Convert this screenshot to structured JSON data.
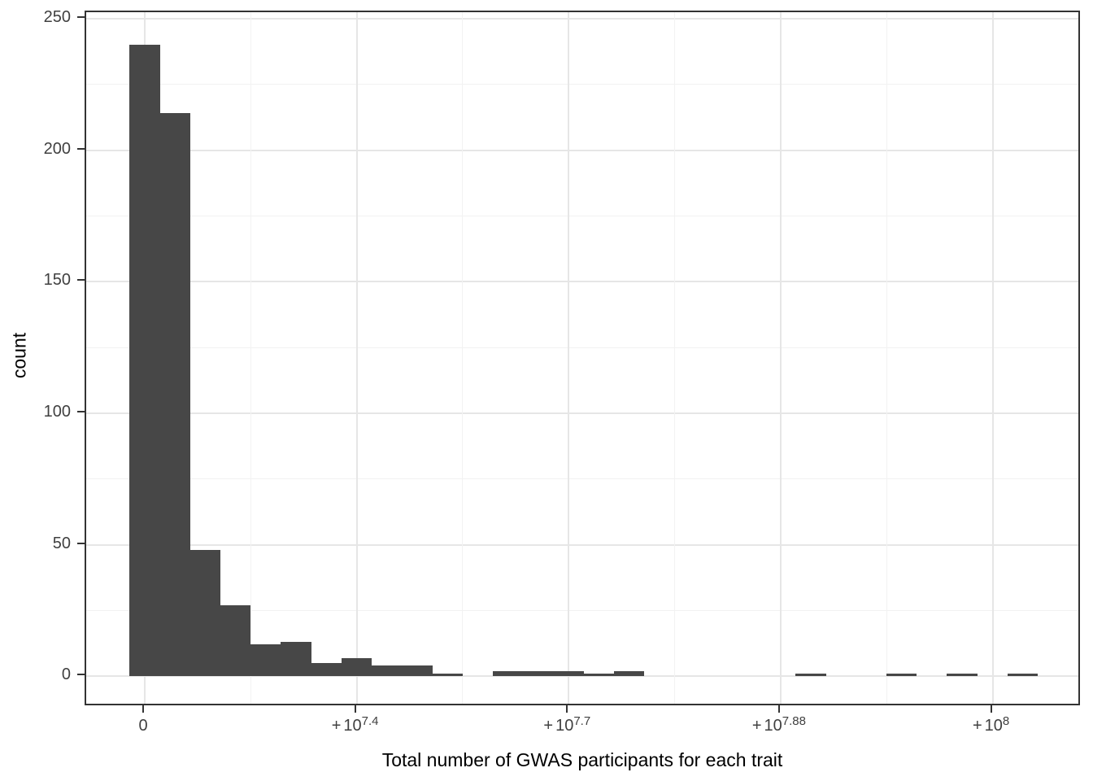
{
  "chart_data": {
    "type": "histogram",
    "title": "",
    "xlabel": "Total number of GWAS participants for each trait",
    "ylabel": "count",
    "legend": "none",
    "grid": "on",
    "x_axis": {
      "tick_labels": [
        {
          "text": "0"
        },
        {
          "sign": "+",
          "base": "10",
          "sup": "7.4"
        },
        {
          "sign": "+",
          "base": "10",
          "sup": "7.7"
        },
        {
          "sign": "+",
          "base": "10",
          "sup": "7.88"
        },
        {
          "sign": "+",
          "base": "10",
          "sup": "8"
        }
      ],
      "tick_values": [
        0,
        25000000,
        50000000,
        75000000,
        100000000
      ]
    },
    "y_axis": {
      "tick_values": [
        0,
        50,
        100,
        150,
        200,
        250
      ],
      "minor_tick_values": [
        25,
        75,
        125,
        175,
        225
      ],
      "ylim": [
        0,
        252
      ]
    },
    "bins": {
      "note": "30 equal-width bins left-to-right; first bin centered on x=0",
      "counts": [
        240,
        214,
        48,
        27,
        12,
        13,
        5,
        7,
        4,
        4,
        1,
        0,
        2,
        2,
        2,
        1,
        2,
        0,
        0,
        0,
        0,
        0,
        1,
        0,
        0,
        1,
        0,
        1,
        0,
        1
      ]
    },
    "colors": {
      "bar_fill": "#474747",
      "panel_border": "#333333",
      "grid_major": "#e6e6e6",
      "grid_minor": "#f2f2f2",
      "tick_mark": "#333333",
      "tick_label": "#404040",
      "axis_title": "#000000",
      "background": "#ffffff"
    }
  }
}
